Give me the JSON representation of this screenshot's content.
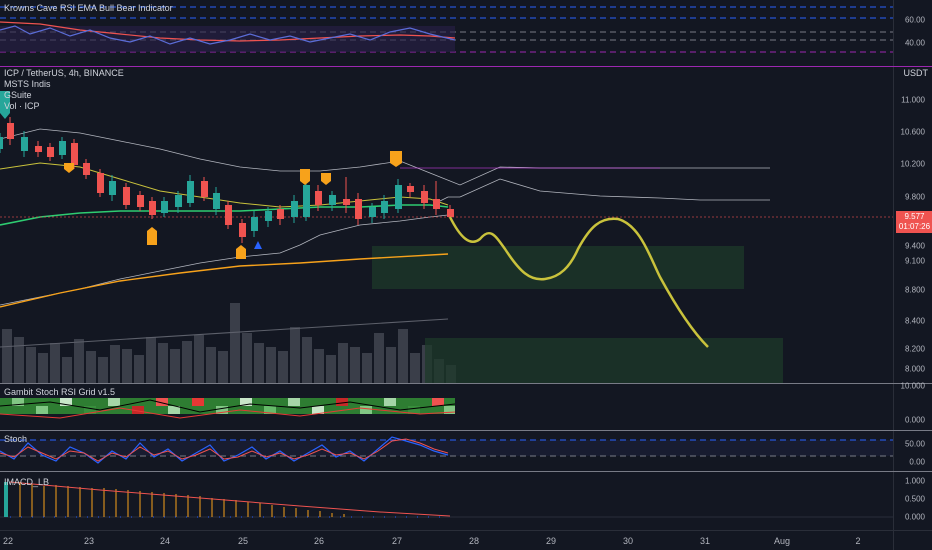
{
  "top_indicator": {
    "title": "Krowns Cave RSI EMA Bull Bear Indicator",
    "ticks": [
      "60.00",
      "40.00"
    ]
  },
  "main": {
    "symbol_line": "ICP / TetherUS, 4h, BINANCE",
    "indicator_1": "MSTS Indis",
    "indicator_2": "GSuite",
    "indicator_3": "Vol · ICP",
    "currency": "USDT",
    "ticks": [
      "11.000",
      "10.600",
      "10.200",
      "9.800",
      "9.400",
      "9.100",
      "8.800",
      "8.400",
      "8.200",
      "8.000"
    ],
    "last_price": "9.577",
    "countdown": "01:07:26",
    "price_color": "#ef5350"
  },
  "stoch_rsi_grid": {
    "title": "Gambit Stoch RSI Grid v1.5",
    "ticks": [
      "10.000",
      "0.000"
    ]
  },
  "stoch": {
    "title": "Stoch",
    "ticks": [
      "50.00",
      "0.00"
    ]
  },
  "imacd": {
    "title": "IMACD_LB",
    "ticks": [
      "1.000",
      "0.500",
      "0.000"
    ]
  },
  "time_axis": [
    "22",
    "23",
    "24",
    "25",
    "26",
    "27",
    "28",
    "29",
    "30",
    "31",
    "Aug",
    "2"
  ],
  "colors": {
    "up": "#26a69a",
    "down": "#ef5350",
    "forecast": "#c9c23c",
    "ema": "#f7a21b",
    "zone": "#1e3a2a"
  }
}
